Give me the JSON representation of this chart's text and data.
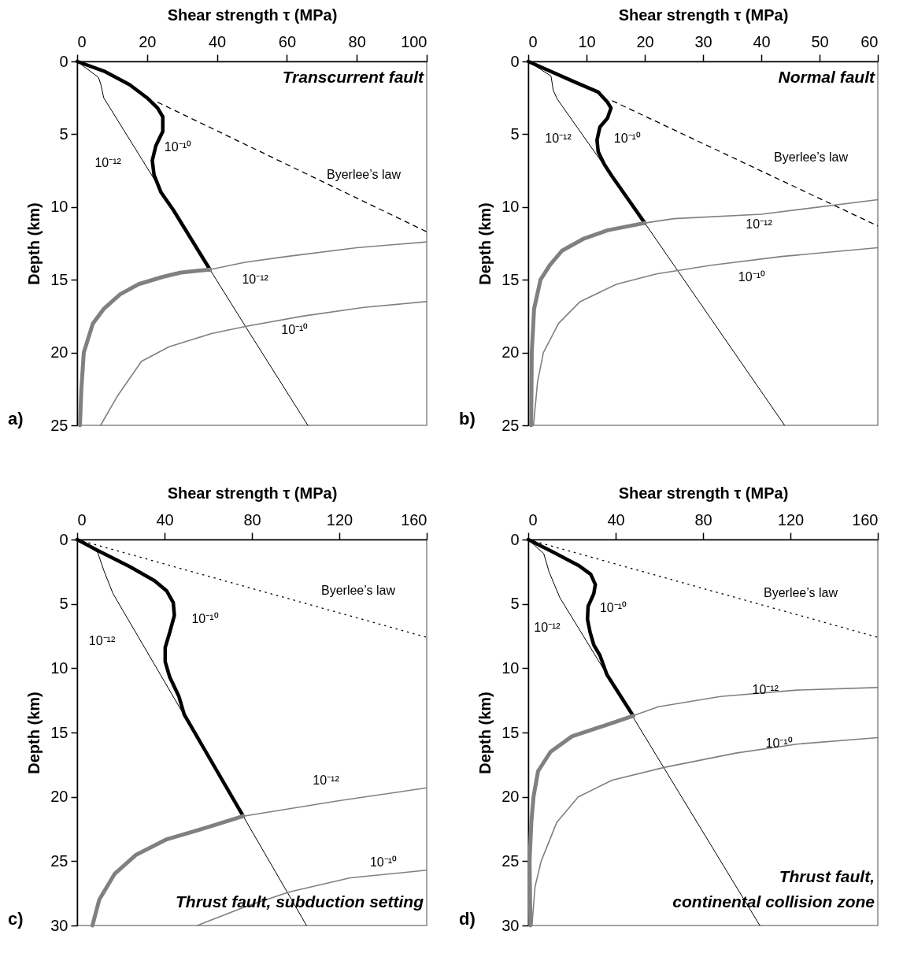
{
  "chart_data": [
    {
      "type": "line",
      "xlabel": "Shear strength τ (MPa)",
      "ylabel": "Depth (km)",
      "xlim": [
        0,
        100
      ],
      "xticks": [
        0,
        20,
        40,
        60,
        80,
        100
      ],
      "ylim": [
        25,
        0
      ],
      "yticks": [
        0,
        5,
        10,
        15,
        20,
        25
      ],
      "series": [
        {
          "name": "10⁻¹²",
          "color": "#000000",
          "x": [
            0,
            5,
            6.1,
            6.8,
            7.6,
            27.5,
            38,
            48.4,
            66
          ],
          "values": [
            0,
            0.9,
            1.1,
            1.6,
            2.5,
            10.2,
            14.3,
            18.3,
            25
          ]
        },
        {
          "name": "10⁻¹⁰",
          "color": "#000000",
          "x": [
            0,
            8,
            15,
            20,
            23,
            24.5,
            24.5,
            22.5,
            21.5,
            22,
            24,
            27.5,
            38
          ],
          "values": [
            0,
            0.7,
            1.6,
            2.5,
            3.2,
            3.8,
            4.8,
            5.8,
            6.8,
            7.8,
            9,
            10.2,
            14.3
          ]
        },
        {
          "name": "Byerlee’s law",
          "color": "#000000",
          "line_style": "dashed",
          "x": [
            23,
            100
          ],
          "values": [
            2.8,
            11.7
          ]
        },
        {
          "name": "10⁻¹²",
          "color": "#808080",
          "x": [
            38,
            48,
            60,
            80,
            100
          ],
          "values": [
            14.3,
            13.8,
            13.4,
            12.8,
            12.4
          ]
        },
        {
          "name": "10⁻¹⁰",
          "color": "#808080",
          "x": [
            6.7,
            11.5,
            18.4,
            26.3,
            38.4,
            48.4,
            64.5,
            82,
            100
          ],
          "values": [
            25,
            23,
            20.6,
            19.6,
            18.7,
            18.2,
            17.5,
            16.9,
            16.5
          ]
        },
        {
          "color": "#808080",
          "x": [
            0.8,
            1.2,
            1.9,
            4.5,
            7.6,
            12.3,
            17.6,
            24.5,
            29.7,
            38
          ],
          "values": [
            25,
            22.5,
            20,
            18,
            17,
            16,
            15.3,
            14.8,
            14.5,
            14.3
          ]
        }
      ],
      "annotations": [
        "a)",
        "Transcurrent fault"
      ]
    },
    {
      "type": "line",
      "xlabel": "Shear strength τ (MPa)",
      "ylabel": "Depth (km)",
      "xlim": [
        0,
        60
      ],
      "xticks": [
        0,
        10,
        20,
        30,
        40,
        50,
        60
      ],
      "ylim": [
        25,
        0
      ],
      "yticks": [
        0,
        5,
        10,
        15,
        20,
        25
      ],
      "series": [
        {
          "name": "10⁻¹²",
          "color": "#000000",
          "x": [
            0,
            3.9,
            4.3,
            5,
            20,
            44
          ],
          "values": [
            0,
            1,
            2,
            2.6,
            11.1,
            25
          ]
        },
        {
          "name": "10⁻¹⁰",
          "color": "#000000",
          "x": [
            0,
            7.9,
            12,
            13.6,
            14.2,
            13.6,
            12.3,
            11.8,
            12,
            13.1,
            14.4,
            20
          ],
          "values": [
            0,
            1.4,
            2.1,
            2.8,
            3.2,
            3.9,
            4.5,
            5.4,
            6.2,
            7.1,
            7.9,
            11.1
          ]
        },
        {
          "name": "Byerlee’s law",
          "color": "#000000",
          "line_style": "dashed",
          "x": [
            14.4,
            60
          ],
          "values": [
            2.7,
            11.3
          ]
        },
        {
          "name": "10⁻¹²",
          "color": "#808080",
          "x": [
            20,
            25,
            40,
            60
          ],
          "values": [
            11.1,
            10.8,
            10.5,
            9.5
          ]
        },
        {
          "name": "10⁻¹⁰",
          "color": "#808080",
          "x": [
            0.9,
            1.6,
            2.6,
            5.2,
            8.9,
            15.2,
            22,
            31.4,
            43.5,
            60
          ],
          "values": [
            25,
            22,
            20,
            18,
            16.5,
            15.3,
            14.6,
            14,
            13.4,
            12.8
          ]
        },
        {
          "color": "#808080",
          "x": [
            0.5,
            0.6,
            1,
            2.1,
            3.7,
            5.8,
            9.4,
            13.6,
            20
          ],
          "values": [
            25,
            20,
            17,
            15,
            14,
            13,
            12.2,
            11.6,
            11.1
          ]
        }
      ],
      "annotations": [
        "b)",
        "Normal fault"
      ]
    },
    {
      "type": "line",
      "xlabel": "Shear strength τ (MPa)",
      "ylabel": "Depth (km)",
      "xlim": [
        0,
        160
      ],
      "xticks": [
        0,
        40,
        80,
        120,
        160
      ],
      "ylim": [
        30,
        0
      ],
      "yticks": [
        0,
        5,
        10,
        15,
        20,
        25,
        30
      ],
      "series": [
        {
          "name": "10⁻¹²",
          "color": "#000000",
          "x": [
            0,
            9.4,
            12.2,
            16.4,
            76,
            105
          ],
          "values": [
            0,
            1,
            2.4,
            4.2,
            21.5,
            30
          ]
        },
        {
          "name": "10⁻¹⁰",
          "color": "#000000",
          "x": [
            0,
            10,
            24,
            35.4,
            41,
            44,
            44.5,
            42.4,
            40.3,
            40.3,
            42.4,
            46.6,
            49,
            76
          ],
          "values": [
            0,
            0.9,
            2.1,
            3.2,
            4,
            4.9,
            5.9,
            7.2,
            8.4,
            9.5,
            10.7,
            12.2,
            13.6,
            21.5
          ]
        },
        {
          "name": "Byerlee’s law",
          "color": "#000000",
          "line_style": "dotted",
          "x": [
            0,
            160
          ],
          "values": [
            0,
            7.6
          ]
        },
        {
          "name": "10⁻¹²",
          "color": "#808080",
          "x": [
            76,
            120,
            160
          ],
          "values": [
            21.5,
            20.3,
            19.3
          ]
        },
        {
          "name": "10⁻¹⁰",
          "color": "#808080",
          "x": [
            55,
            76,
            97,
            125,
            160
          ],
          "values": [
            30,
            28.6,
            27.4,
            26.3,
            25.7
          ]
        },
        {
          "color": "#808080",
          "x": [
            7,
            10.1,
            17.1,
            27,
            41,
            59,
            76
          ],
          "values": [
            30,
            28,
            26,
            24.5,
            23.3,
            22.4,
            21.5
          ]
        }
      ],
      "annotations": [
        "c)",
        "Thrust fault, subduction setting"
      ]
    },
    {
      "type": "line",
      "xlabel": "Shear strength τ (MPa)",
      "ylabel": "Depth (km)",
      "xlim": [
        0,
        160
      ],
      "xticks": [
        0,
        40,
        80,
        120,
        160
      ],
      "ylim": [
        30,
        0
      ],
      "yticks": [
        0,
        5,
        10,
        15,
        20,
        25,
        30
      ],
      "series": [
        {
          "name": "10⁻¹²",
          "color": "#000000",
          "x": [
            0,
            7.1,
            9.5,
            14.4,
            47.6,
            106
          ],
          "values": [
            0,
            1.1,
            2.5,
            4.5,
            13.7,
            30
          ]
        },
        {
          "name": "10⁻¹⁰",
          "color": "#000000",
          "x": [
            0,
            11.6,
            22.9,
            28.6,
            30.7,
            30,
            27.4,
            27.1,
            28.3,
            30,
            32.8,
            36,
            48
          ],
          "values": [
            0,
            1,
            2,
            2.7,
            3.5,
            4.2,
            5.2,
            6.2,
            7.2,
            8.2,
            9,
            10.5,
            13.7
          ]
        },
        {
          "name": "Byerlee’s law",
          "color": "#000000",
          "line_style": "dotted",
          "x": [
            0,
            160
          ],
          "values": [
            0,
            7.6
          ]
        },
        {
          "name": "10⁻¹²",
          "color": "#808080",
          "x": [
            48,
            59.6,
            88,
            123,
            160
          ],
          "values": [
            13.7,
            13,
            12.2,
            11.7,
            11.5
          ]
        },
        {
          "name": "10⁻¹⁰",
          "color": "#808080",
          "x": [
            1.7,
            3.1,
            5.9,
            13,
            22.9,
            38.4,
            62.5,
            95,
            123,
            160
          ],
          "values": [
            30,
            27,
            25,
            22,
            20,
            18.7,
            17.7,
            16.6,
            15.9,
            15.4
          ]
        },
        {
          "color": "#808080",
          "x": [
            1,
            0.6,
            1.4,
            2.4,
            4.5,
            10.2,
            20,
            34.2,
            48
          ],
          "values": [
            30,
            25,
            22,
            20,
            18,
            16.5,
            15.3,
            14.5,
            13.7
          ]
        }
      ],
      "annotations": [
        "d)",
        "Thrust fault,\ncontinental collision zone"
      ]
    }
  ]
}
